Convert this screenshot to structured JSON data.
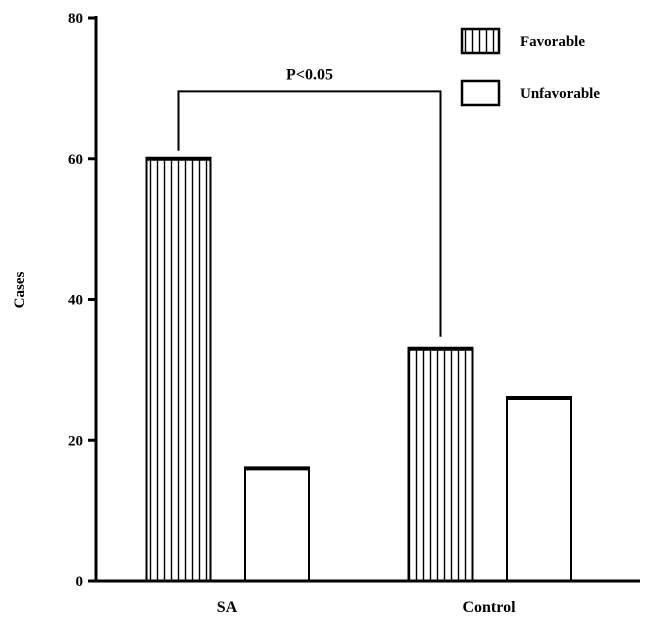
{
  "chart_data": {
    "type": "bar",
    "title": "",
    "xlabel": "",
    "ylabel": "Cases",
    "ylim": [
      0,
      80
    ],
    "yticks": [
      0,
      20,
      40,
      60,
      80
    ],
    "categories": [
      "SA",
      "Control"
    ],
    "series": [
      {
        "name": "Favorable",
        "values": [
          60,
          33
        ],
        "pattern": "vertical-stripes"
      },
      {
        "name": "Unfavorable",
        "values": [
          16,
          26
        ],
        "pattern": "none"
      }
    ],
    "annotations": [
      {
        "text": "P<0.05",
        "type": "bracket",
        "from": {
          "category": "SA",
          "series": "Favorable"
        },
        "to": {
          "category": "Control",
          "series": "Favorable"
        },
        "y": 70
      }
    ],
    "legend": {
      "position": "top-right"
    },
    "grid": false,
    "colors": {
      "stroke": "#000000",
      "fill": "#ffffff"
    }
  }
}
